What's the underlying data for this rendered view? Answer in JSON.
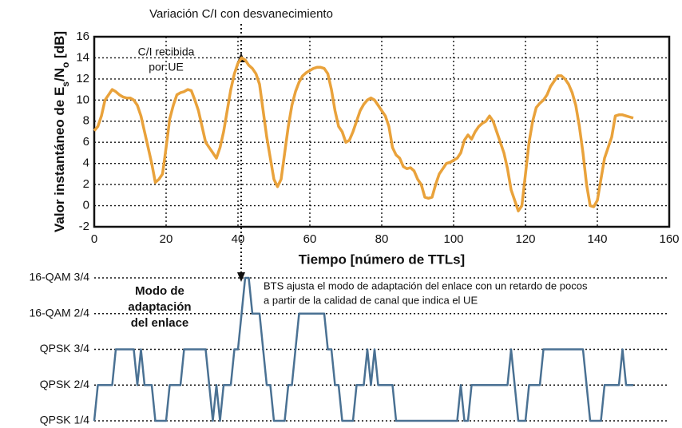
{
  "chart_data": [
    {
      "type": "line",
      "title": "Variación C/I con desvanecimiento",
      "xlabel": "Tiempo [número de TTLs]",
      "ylabel_parts": [
        "Valor instantáneo de E",
        "s",
        "/N",
        "o",
        " [dB]"
      ],
      "annotations": [
        "C/I recibida",
        "por UE"
      ],
      "xlim": [
        0,
        160
      ],
      "xticks": [
        0,
        20,
        40,
        60,
        80,
        100,
        120,
        140,
        160
      ],
      "ylim": [
        -2,
        16
      ],
      "yticks": [
        -2,
        0,
        2,
        4,
        6,
        8,
        10,
        12,
        14,
        16
      ],
      "grid": true,
      "x": [
        0,
        1,
        2,
        3,
        4,
        5,
        6,
        7,
        8,
        9,
        10,
        11,
        12,
        13,
        14,
        15,
        16,
        17,
        18,
        19,
        20,
        21,
        22,
        23,
        24,
        25,
        26,
        27,
        28,
        29,
        30,
        31,
        32,
        33,
        34,
        35,
        36,
        37,
        38,
        39,
        40,
        41,
        42,
        43,
        44,
        45,
        46,
        47,
        48,
        49,
        50,
        51,
        52,
        53,
        54,
        55,
        56,
        57,
        58,
        59,
        60,
        61,
        62,
        63,
        64,
        65,
        66,
        67,
        68,
        69,
        70,
        71,
        72,
        73,
        74,
        75,
        76,
        77,
        78,
        79,
        80,
        81,
        82,
        83,
        84,
        85,
        86,
        87,
        88,
        89,
        90,
        91,
        92,
        93,
        94,
        95,
        96,
        97,
        98,
        99,
        100,
        101,
        102,
        103,
        104,
        105,
        106,
        107,
        108,
        109,
        110,
        111,
        112,
        113,
        114,
        115,
        116,
        117,
        118,
        119,
        120,
        121,
        122,
        123,
        124,
        125,
        126,
        127,
        128,
        129,
        130,
        131,
        132,
        133,
        134,
        135,
        136,
        137,
        138,
        139,
        140,
        141,
        142,
        143,
        144,
        145,
        146,
        147,
        148,
        149,
        150
      ],
      "series": [
        {
          "color": "#e9a23b",
          "values": [
            7.1,
            7.5,
            8.5,
            10,
            10.5,
            11,
            10.8,
            10.5,
            10.3,
            10.2,
            10.2,
            10,
            9.5,
            8.5,
            7,
            5.5,
            4,
            2.2,
            2.5,
            3,
            5.5,
            8.2,
            9.5,
            10.5,
            10.7,
            10.8,
            11,
            10.9,
            10,
            9,
            7.5,
            6,
            5.5,
            5,
            4.5,
            5.5,
            7,
            9,
            11,
            12.5,
            13.5,
            14,
            13.8,
            13.3,
            13,
            12.5,
            11.5,
            9,
            6.5,
            4.5,
            2.5,
            1.8,
            2.5,
            5,
            7.5,
            9.5,
            10.8,
            11.7,
            12.3,
            12.6,
            12.8,
            13,
            13.1,
            13.1,
            13,
            12.5,
            11,
            9,
            7.5,
            7,
            6,
            6.2,
            7,
            8,
            9,
            9.6,
            10,
            10.2,
            10,
            9.5,
            9,
            8.5,
            7.5,
            5.5,
            4.8,
            4.5,
            3.7,
            3.5,
            3.6,
            3.3,
            2.5,
            2,
            0.8,
            0.7,
            0.8,
            2,
            3,
            3.5,
            4,
            4.1,
            4.3,
            4.5,
            5,
            6.2,
            6.7,
            6.3,
            7,
            7.5,
            7.8,
            8,
            8.5,
            8,
            7,
            6,
            5,
            3.5,
            1.5,
            0.5,
            -0.5,
            0,
            3,
            6,
            8,
            9.3,
            9.7,
            10,
            10.5,
            11.3,
            11.8,
            12.3,
            12.3,
            12,
            11.5,
            10.7,
            9.5,
            7.5,
            5,
            2,
            0,
            -0.1,
            0.5,
            2.5,
            4.5,
            5.5,
            6.5,
            8.5,
            8.6,
            8.6,
            8.5,
            8.4,
            8.3
          ]
        }
      ]
    },
    {
      "type": "line",
      "annotations": [
        "Modo de",
        "adaptación",
        "del enlace",
        "BTS ajusta el modo de adaptación del enlace con un retardo de pocos",
        "a partir de la calidad de canal que indica el UE"
      ],
      "xlim": [
        0,
        160
      ],
      "ylim": [
        0,
        4
      ],
      "yticks": [
        {
          "value": 0,
          "label": "QPSK 1/4"
        },
        {
          "value": 1,
          "label": "QPSK 2/4"
        },
        {
          "value": 2,
          "label": "QPSK 3/4"
        },
        {
          "value": 3,
          "label": "16-QAM 2/4"
        },
        {
          "value": 4,
          "label": "16-QAM 3/4"
        }
      ],
      "grid": true,
      "x": [
        0,
        1,
        2,
        3,
        4,
        5,
        6,
        7,
        8,
        9,
        10,
        11,
        12,
        13,
        14,
        15,
        16,
        17,
        18,
        19,
        20,
        21,
        22,
        23,
        24,
        25,
        26,
        27,
        28,
        29,
        30,
        31,
        32,
        33,
        34,
        35,
        36,
        37,
        38,
        39,
        40,
        41,
        42,
        43,
        44,
        45,
        46,
        47,
        48,
        49,
        50,
        51,
        52,
        53,
        54,
        55,
        56,
        57,
        58,
        59,
        60,
        61,
        62,
        63,
        64,
        65,
        66,
        67,
        68,
        69,
        70,
        71,
        72,
        73,
        74,
        75,
        76,
        77,
        78,
        79,
        80,
        81,
        82,
        83,
        84,
        85,
        86,
        87,
        88,
        89,
        90,
        91,
        92,
        93,
        94,
        95,
        96,
        97,
        98,
        99,
        100,
        101,
        102,
        103,
        104,
        105,
        106,
        107,
        108,
        109,
        110,
        111,
        112,
        113,
        114,
        115,
        116,
        117,
        118,
        119,
        120,
        121,
        122,
        123,
        124,
        125,
        126,
        127,
        128,
        129,
        130,
        131,
        132,
        133,
        134,
        135,
        136,
        137,
        138,
        139,
        140,
        141,
        142,
        143,
        144,
        145,
        146,
        147,
        148,
        149,
        150
      ],
      "series": [
        {
          "color": "#4a7193",
          "values": [
            0,
            1,
            1,
            1,
            1,
            1,
            2,
            2,
            2,
            2,
            2,
            2,
            1,
            2,
            1,
            1,
            1,
            0,
            0,
            0,
            0,
            1,
            1,
            1,
            1,
            2,
            2,
            2,
            2,
            2,
            2,
            2,
            1,
            0,
            1,
            0,
            1,
            1,
            1,
            2,
            2,
            3,
            4,
            4,
            3,
            3,
            3,
            2,
            1,
            1,
            0,
            0,
            0,
            0,
            1,
            1,
            2,
            3,
            3,
            3,
            3,
            3,
            3,
            3,
            3,
            2,
            2,
            1,
            1,
            0,
            0,
            0,
            0,
            1,
            1,
            1,
            2,
            1,
            2,
            1,
            1,
            1,
            1,
            1,
            0,
            0,
            0,
            0,
            0,
            0,
            0,
            0,
            0,
            0,
            0,
            0,
            0,
            0,
            0,
            0,
            0,
            0,
            1,
            0,
            0,
            1,
            1,
            1,
            1,
            1,
            1,
            1,
            1,
            1,
            1,
            1,
            2,
            1,
            0,
            0,
            0,
            1,
            1,
            1,
            1,
            2,
            2,
            2,
            2,
            2,
            2,
            2,
            2,
            2,
            2,
            2,
            2,
            1,
            0,
            0,
            0,
            0,
            1,
            1,
            1,
            1,
            1,
            2,
            1,
            1,
            1
          ]
        }
      ]
    }
  ]
}
